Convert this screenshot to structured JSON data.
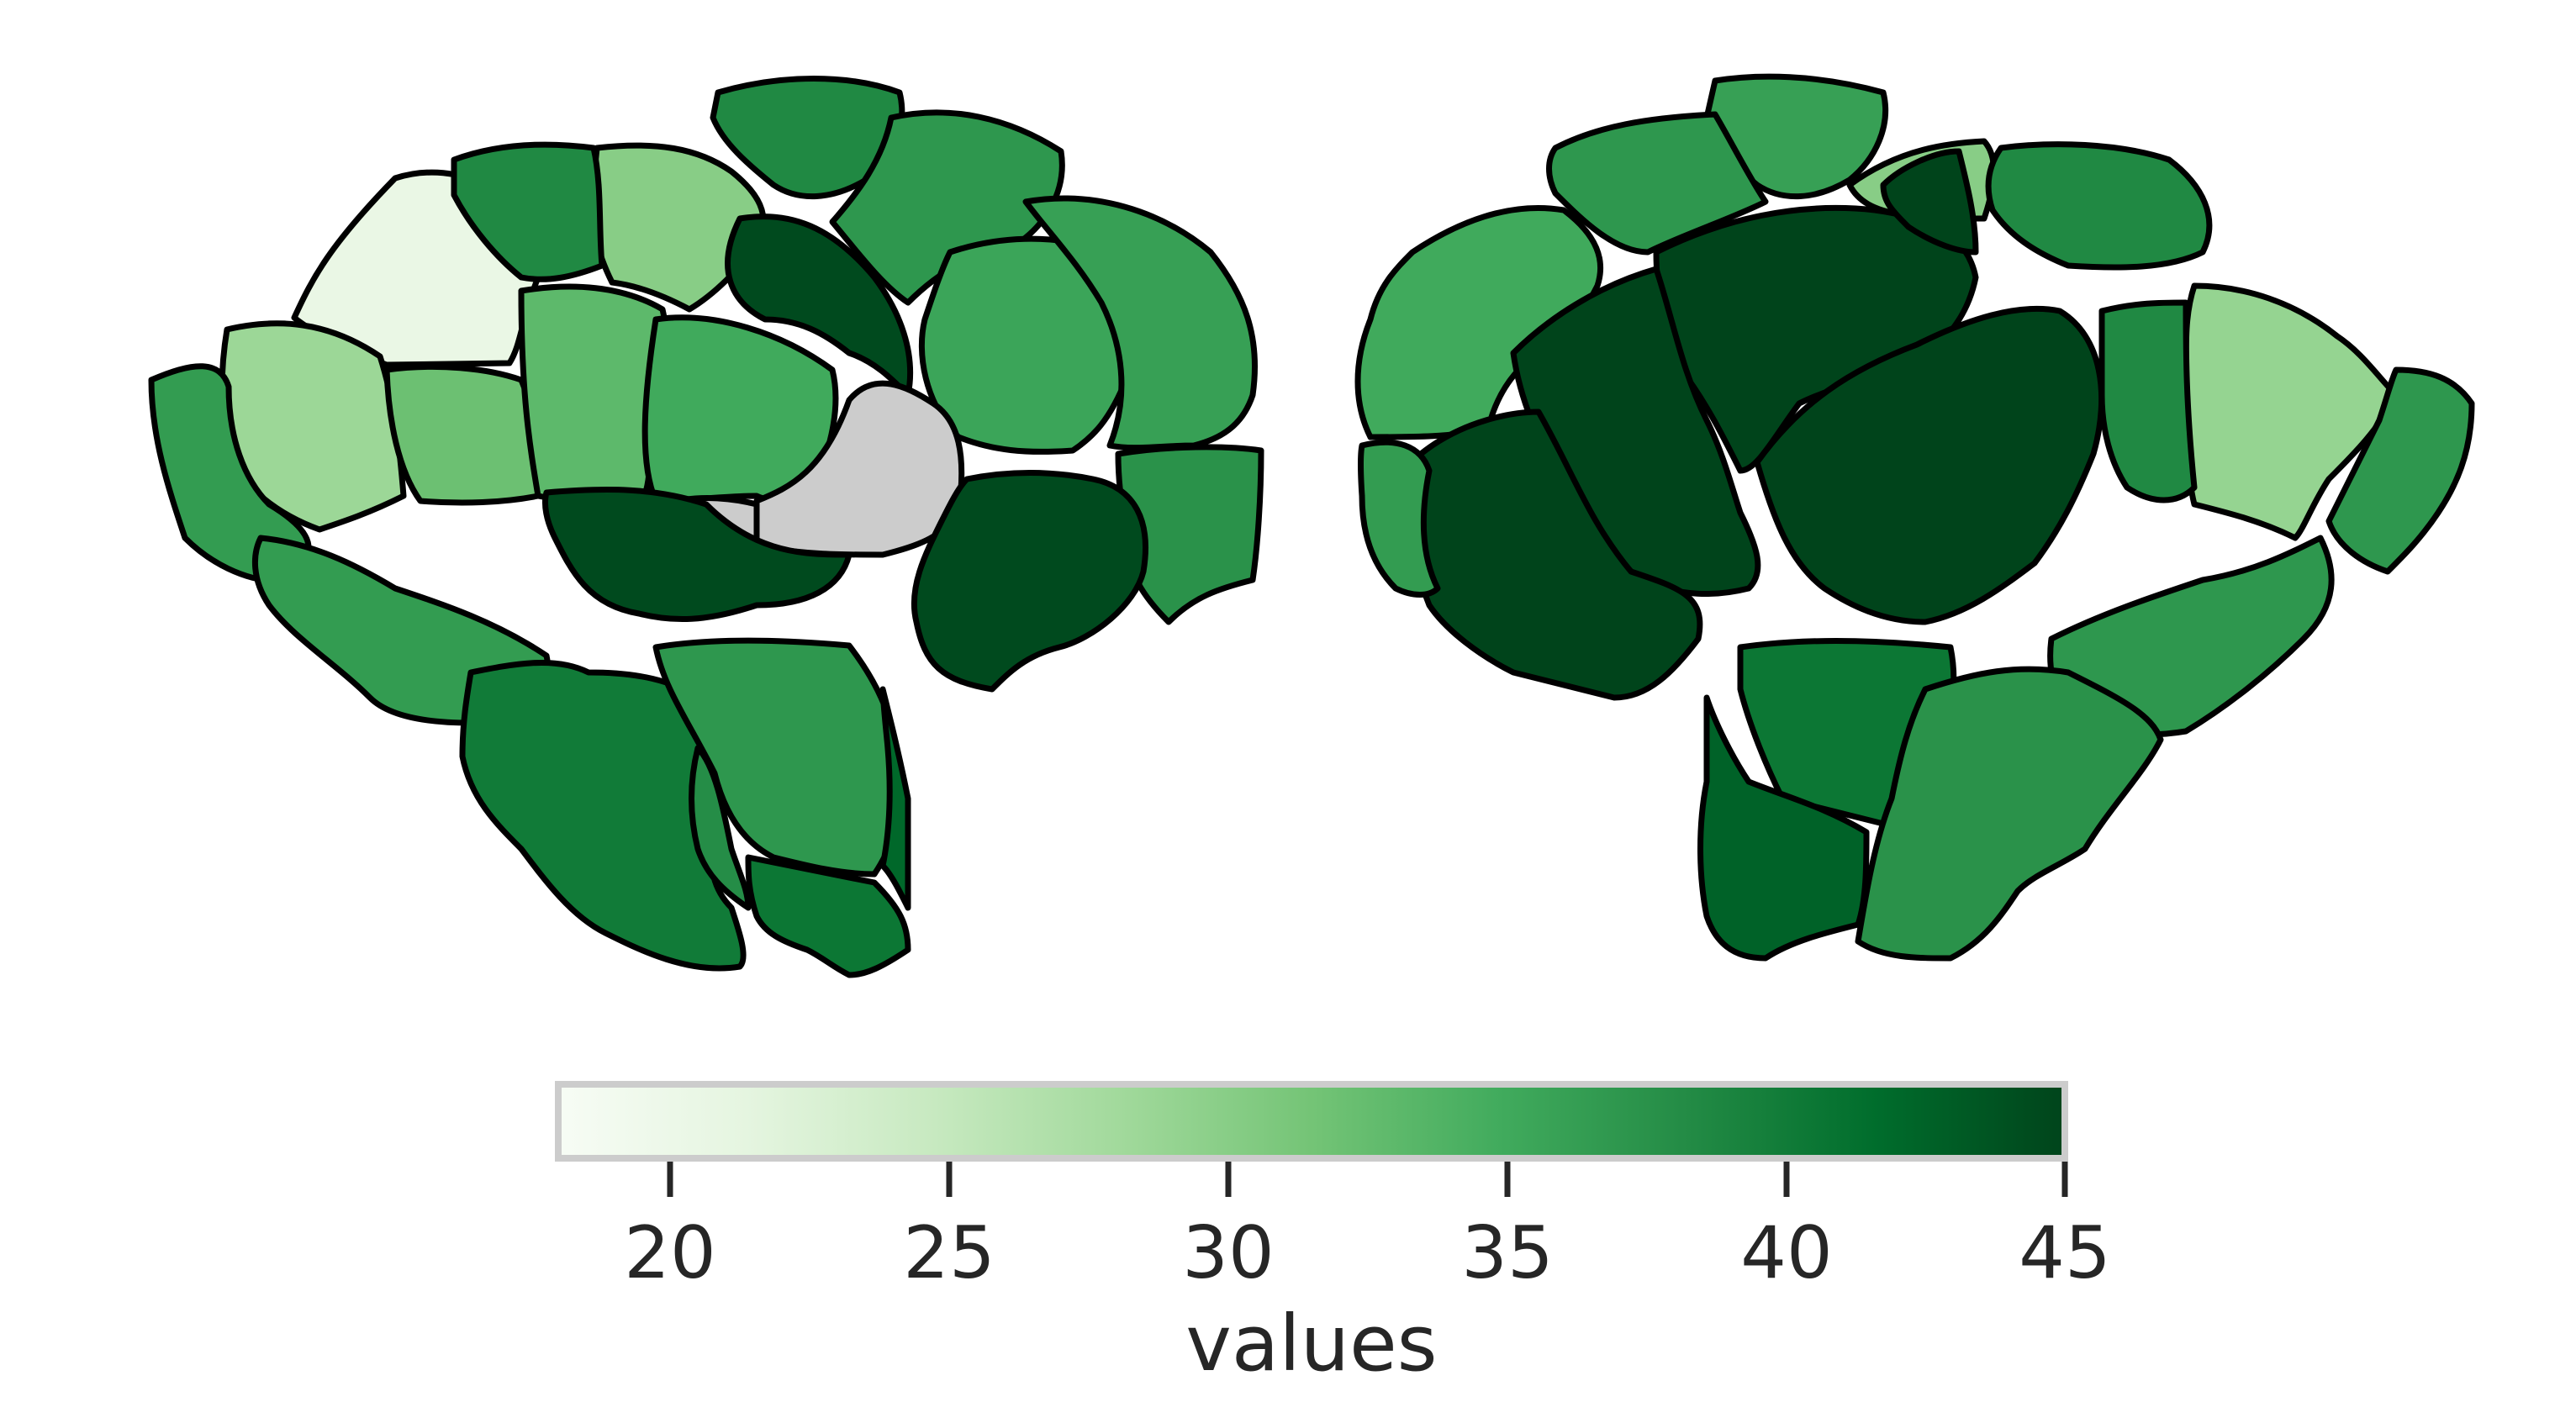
{
  "chart_data": {
    "type": "heatmap",
    "colormap": "Greens",
    "missing_color": "#cccccc",
    "views": [
      {
        "name": "left",
        "regions": [
          {
            "id": "l1",
            "value": 20.5
          },
          {
            "id": "l2",
            "value": 30
          },
          {
            "id": "l3",
            "value": 38.5
          },
          {
            "id": "l4",
            "value": 38.5
          },
          {
            "id": "l5",
            "value": 37
          },
          {
            "id": "l6",
            "value": 28.5
          },
          {
            "id": "l7",
            "value": 32
          },
          {
            "id": "l8",
            "value": 36.5
          },
          {
            "id": "l9",
            "value": 33
          },
          {
            "id": "l10",
            "value": 35
          },
          {
            "id": "l11",
            "value": 44.5
          },
          {
            "id": "l12",
            "value": 35.5
          },
          {
            "id": "l13",
            "value": 36
          },
          {
            "id": "l14",
            "value": 37.5
          },
          {
            "id": "l15",
            "value": 36.5
          },
          {
            "id": "l16",
            "value": null
          },
          {
            "id": "l17",
            "value": 44.5
          },
          {
            "id": "l18",
            "value": 44.5
          },
          {
            "id": "l19",
            "value": 40
          },
          {
            "id": "l20",
            "value": 37
          },
          {
            "id": "l21",
            "value": 38
          },
          {
            "id": "l22",
            "value": 40.5
          },
          {
            "id": "l23",
            "value": 42
          }
        ]
      },
      {
        "name": "right",
        "regions": [
          {
            "id": "r1",
            "value": 35
          },
          {
            "id": "r2",
            "value": 36
          },
          {
            "id": "r3",
            "value": 30
          },
          {
            "id": "r4",
            "value": 38.5
          },
          {
            "id": "r5",
            "value": 37
          },
          {
            "id": "r6",
            "value": 45
          },
          {
            "id": "r7",
            "value": 45
          },
          {
            "id": "r8",
            "value": 45
          },
          {
            "id": "r9",
            "value": 45
          },
          {
            "id": "r10",
            "value": 36.5
          },
          {
            "id": "r11",
            "value": 29
          },
          {
            "id": "r12",
            "value": 37
          },
          {
            "id": "r13",
            "value": 38.5
          },
          {
            "id": "r14",
            "value": 37
          },
          {
            "id": "r15",
            "value": 40.5
          },
          {
            "id": "r16",
            "value": 42.5
          },
          {
            "id": "r17",
            "value": 37.5
          },
          {
            "id": "r18",
            "value": 45
          }
        ]
      }
    ],
    "colorbar": {
      "label": "values",
      "vmin": 18,
      "vmax": 45,
      "ticks": [
        20,
        25,
        30,
        35,
        40,
        45
      ],
      "tick_labels": [
        "20",
        "25",
        "30",
        "35",
        "40",
        "45"
      ],
      "orientation": "horizontal"
    }
  }
}
